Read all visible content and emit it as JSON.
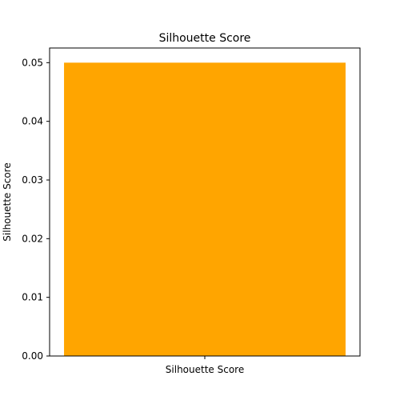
{
  "chart_data": {
    "type": "bar",
    "title": "Silhouette Score",
    "xlabel": "",
    "ylabel": "Silhouette Score",
    "categories": [
      "Silhouette Score"
    ],
    "values": [
      0.05
    ],
    "ylim": [
      0,
      0.05
    ],
    "yticks": [
      "0.00",
      "0.01",
      "0.02",
      "0.03",
      "0.04",
      "0.05"
    ],
    "ytick_values": [
      0,
      0.01,
      0.02,
      0.03,
      0.04,
      0.05
    ],
    "grid": false,
    "legend": "none",
    "bar_color": "#FFA500"
  }
}
